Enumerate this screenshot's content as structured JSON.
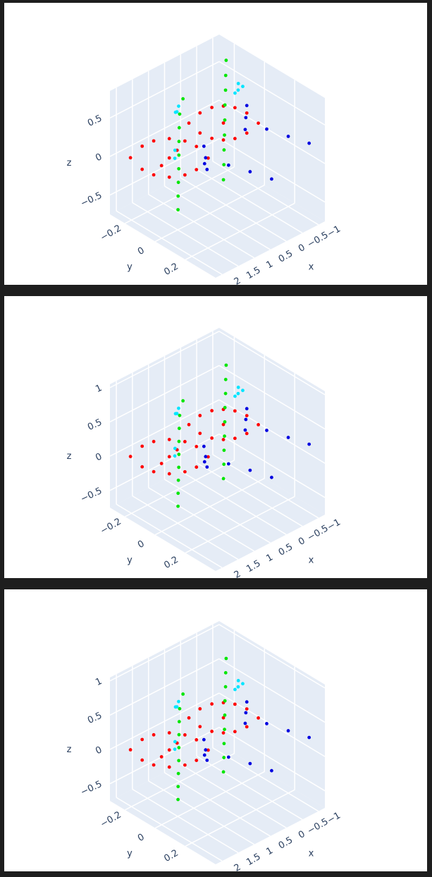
{
  "chart_data": [
    {
      "type": "scatter3d",
      "x_title": "x",
      "y_title": "y",
      "z_title": "z",
      "xlim": [
        -1.2,
        2.2
      ],
      "ylim": [
        -0.3,
        0.4
      ],
      "zlim": [
        -0.75,
        0.85
      ],
      "xticks": [
        {
          "value": -1,
          "label": "−1"
        },
        {
          "value": -0.5,
          "label": "−0.5"
        },
        0,
        0.5,
        1,
        1.5,
        2
      ],
      "yticks": [
        {
          "value": -0.2,
          "label": "−0.2"
        },
        0,
        0.2
      ],
      "zticks": [
        {
          "value": -0.5,
          "label": "−0.5"
        },
        0,
        0.5
      ],
      "series": [
        {
          "color": "#ff0000",
          "x": [
            1.655,
            1.46,
            1.46,
            1.27,
            1.27,
            1.01,
            1.01,
            1.01,
            0.75,
            0.75,
            0.56,
            0.56,
            0.365,
            0.88,
            1.14,
            0.4,
            0.21,
            0.21,
            0.01,
            0.01,
            -0.18,
            -0.18,
            -0.18,
            -0.37,
            -0.37,
            -0.57,
            -0.57,
            -0.76
          ],
          "y": [
            -0.28,
            -0.244,
            -0.244,
            -0.208,
            -0.208,
            -0.16,
            -0.16,
            -0.16,
            -0.112,
            -0.112,
            -0.076,
            -0.076,
            -0.04,
            -0.136,
            -0.184,
            -0.16,
            -0.127,
            -0.127,
            -0.091,
            -0.091,
            -0.055,
            -0.055,
            -0.055,
            -0.019,
            -0.019,
            0.017,
            0.017,
            0.053
          ],
          "z": [
            -0.11,
            0.04,
            -0.26,
            0.11,
            -0.33,
            0.14,
            -0.36,
            -0.11,
            0.11,
            -0.33,
            0.04,
            -0.26,
            -0.11,
            -0.01,
            -0.21,
            0.21,
            0.34,
            0.08,
            0.41,
            0.01,
            0.43,
            -0.01,
            0.21,
            0.41,
            0.01,
            0.34,
            0.08,
            0.21
          ]
        },
        {
          "color": "#00e600",
          "x": [
            -0.05,
            0.26,
            0.475,
            0.69,
            0.9,
            1.11,
            1.325,
            1.54,
            1.75,
            -1.135,
            -0.9,
            -0.67,
            -0.43,
            -0.2,
            0.03,
            0.27,
            0.5,
            0.735
          ],
          "y": [
            -0.295,
            -0.251,
            -0.208,
            -0.164,
            -0.12,
            -0.076,
            -0.033,
            0.011,
            0.055,
            -0.24,
            -0.193,
            -0.145,
            -0.098,
            -0.05,
            -0.003,
            0.045,
            0.093,
            0.14
          ],
          "z": [
            0.27,
            0.19,
            0.11,
            0.03,
            -0.05,
            -0.13,
            -0.21,
            -0.29,
            -0.37,
            0.6,
            0.51,
            0.425,
            0.34,
            0.25,
            0.16,
            0.075,
            -0.01,
            -0.1
          ]
        },
        {
          "color": "#00e5ff",
          "x": [
            0.25,
            0.35,
            0.3,
            0.55,
            0.65,
            -0.95,
            -0.85,
            -0.9,
            -0.8
          ],
          "y": [
            -0.26,
            -0.25,
            -0.27,
            -0.22,
            -0.2,
            -0.12,
            -0.1,
            -0.08,
            -0.11
          ],
          "z": [
            0.28,
            0.24,
            0.2,
            -0.18,
            -0.24,
            0.48,
            0.44,
            0.5,
            0.4
          ]
        },
        {
          "color": "#0000e0",
          "x": [
            0.45,
            0.42,
            0.4,
            0.43,
            0.2,
            0.0,
            -0.2,
            -0.65,
            -0.62,
            -0.6,
            -0.8,
            -1.0,
            -1.18
          ],
          "y": [
            -0.05,
            -0.045,
            -0.04,
            -0.05,
            0.06,
            0.16,
            0.26,
            0,
            0,
            0,
            0.1,
            0.2,
            0.3
          ],
          "z": [
            0.05,
            -0.1,
            -0.25,
            -0.18,
            -0.12,
            -0.13,
            -0.15,
            0.4,
            0.25,
            0.1,
            0.18,
            0.16,
            0.15
          ]
        }
      ]
    },
    {
      "type": "scatter3d",
      "x_title": "x",
      "y_title": "y",
      "z_title": "z",
      "xlim": [
        -1.2,
        2.2
      ],
      "ylim": [
        -0.3,
        0.4
      ],
      "zlim": [
        -0.75,
        1.05
      ],
      "xticks": [
        {
          "value": -1,
          "label": "−1"
        },
        {
          "value": -0.5,
          "label": "−0.5"
        },
        0,
        0.5,
        1,
        1.5,
        2
      ],
      "yticks": [
        {
          "value": -0.2,
          "label": "−0.2"
        },
        0,
        0.2
      ],
      "zticks": [
        {
          "value": -0.5,
          "label": "−0.5"
        },
        0,
        0.5,
        1
      ],
      "series": [
        {
          "color": "#ff0000",
          "x": [
            1.655,
            1.46,
            1.46,
            1.27,
            1.27,
            1.01,
            1.01,
            1.01,
            0.75,
            0.75,
            0.56,
            0.56,
            0.365,
            0.88,
            1.14,
            0.4,
            0.21,
            0.21,
            0.01,
            0.01,
            -0.18,
            -0.18,
            -0.18,
            -0.37,
            -0.37,
            -0.57,
            -0.57,
            -0.76
          ],
          "y": [
            -0.28,
            -0.244,
            -0.244,
            -0.208,
            -0.208,
            -0.16,
            -0.16,
            -0.16,
            -0.112,
            -0.112,
            -0.076,
            -0.076,
            -0.04,
            -0.136,
            -0.184,
            -0.16,
            -0.127,
            -0.127,
            -0.091,
            -0.091,
            -0.055,
            -0.055,
            -0.055,
            -0.019,
            -0.019,
            0.017,
            0.017,
            0.053
          ],
          "z": [
            -0.11,
            0.04,
            -0.26,
            0.11,
            -0.33,
            0.14,
            -0.36,
            -0.11,
            0.11,
            -0.33,
            0.04,
            -0.26,
            -0.11,
            -0.01,
            -0.21,
            0.21,
            0.34,
            0.08,
            0.41,
            0.01,
            0.43,
            -0.01,
            0.21,
            0.41,
            0.01,
            0.34,
            0.08,
            0.21
          ]
        },
        {
          "color": "#00e600",
          "x": [
            -0.05,
            0.26,
            0.475,
            0.69,
            0.9,
            1.11,
            1.325,
            1.54,
            1.75,
            -1.135,
            -0.9,
            -0.67,
            -0.43,
            -0.2,
            0.03,
            0.27,
            0.5,
            0.735
          ],
          "y": [
            -0.295,
            -0.251,
            -0.208,
            -0.164,
            -0.12,
            -0.076,
            -0.033,
            0.011,
            0.055,
            -0.24,
            -0.193,
            -0.145,
            -0.098,
            -0.05,
            -0.003,
            0.045,
            0.093,
            0.14
          ],
          "z": [
            0.27,
            0.19,
            0.11,
            0.03,
            -0.05,
            -0.13,
            -0.21,
            -0.29,
            -0.37,
            0.6,
            0.51,
            0.425,
            0.34,
            0.25,
            0.16,
            0.075,
            -0.01,
            -0.1
          ]
        },
        {
          "color": "#00e5ff",
          "x": [
            0.25,
            0.35,
            0.3,
            0.55,
            0.65,
            -0.95,
            -0.85,
            -0.9,
            -0.8
          ],
          "y": [
            -0.26,
            -0.25,
            -0.27,
            -0.22,
            -0.2,
            -0.12,
            -0.1,
            -0.08,
            -0.11
          ],
          "z": [
            0.28,
            0.24,
            0.2,
            -0.18,
            -0.24,
            0.48,
            0.44,
            0.5,
            0.4
          ]
        },
        {
          "color": "#0000e0",
          "x": [
            0.45,
            0.42,
            0.4,
            0.43,
            0.2,
            0.0,
            -0.2,
            -0.65,
            -0.62,
            -0.6,
            -0.8,
            -1.0,
            -1.18
          ],
          "y": [
            -0.05,
            -0.045,
            -0.04,
            -0.05,
            0.06,
            0.16,
            0.26,
            0,
            0,
            0,
            0.1,
            0.2,
            0.3
          ],
          "z": [
            0.05,
            -0.1,
            -0.25,
            -0.18,
            -0.12,
            -0.13,
            -0.15,
            0.4,
            0.25,
            0.1,
            0.18,
            0.16,
            0.15
          ]
        }
      ]
    },
    {
      "type": "scatter3d",
      "x_title": "x",
      "y_title": "y",
      "z_title": "z",
      "xlim": [
        -1.2,
        2.2
      ],
      "ylim": [
        -0.3,
        0.4
      ],
      "zlim": [
        -0.75,
        1.05
      ],
      "xticks": [
        {
          "value": -1,
          "label": "−1"
        },
        {
          "value": -0.5,
          "label": "−0.5"
        },
        0,
        0.5,
        1,
        1.5,
        2
      ],
      "yticks": [
        {
          "value": -0.2,
          "label": "−0.2"
        },
        0,
        0.2
      ],
      "zticks": [
        {
          "value": -0.5,
          "label": "−0.5"
        },
        0,
        0.5,
        1
      ],
      "series": [
        {
          "color": "#ff0000",
          "x": [
            1.655,
            1.46,
            1.46,
            1.27,
            1.27,
            1.01,
            1.01,
            1.01,
            0.75,
            0.75,
            0.56,
            0.56,
            0.365,
            0.88,
            1.14,
            0.4,
            0.21,
            0.21,
            0.01,
            0.01,
            -0.18,
            -0.18,
            -0.18,
            -0.37,
            -0.37,
            -0.57,
            -0.57,
            -0.76
          ],
          "y": [
            -0.28,
            -0.244,
            -0.244,
            -0.208,
            -0.208,
            -0.16,
            -0.16,
            -0.16,
            -0.112,
            -0.112,
            -0.076,
            -0.076,
            -0.04,
            -0.136,
            -0.184,
            -0.16,
            -0.127,
            -0.127,
            -0.091,
            -0.091,
            -0.055,
            -0.055,
            -0.055,
            -0.019,
            -0.019,
            0.017,
            0.017,
            0.053
          ],
          "z": [
            -0.11,
            0.04,
            -0.26,
            0.11,
            -0.33,
            0.14,
            -0.36,
            -0.11,
            0.11,
            -0.33,
            0.04,
            -0.26,
            -0.11,
            -0.01,
            -0.21,
            0.21,
            0.34,
            0.08,
            0.41,
            0.01,
            0.43,
            -0.01,
            0.21,
            0.41,
            0.01,
            0.34,
            0.08,
            0.21
          ]
        },
        {
          "color": "#00e600",
          "x": [
            -0.05,
            0.26,
            0.475,
            0.69,
            0.9,
            1.11,
            1.325,
            1.54,
            1.75,
            -1.135,
            -0.9,
            -0.67,
            -0.43,
            -0.2,
            0.03,
            0.27,
            0.5,
            0.735
          ],
          "y": [
            -0.295,
            -0.251,
            -0.208,
            -0.164,
            -0.12,
            -0.076,
            -0.033,
            0.011,
            0.055,
            -0.24,
            -0.193,
            -0.145,
            -0.098,
            -0.05,
            -0.003,
            0.045,
            0.093,
            0.14
          ],
          "z": [
            0.27,
            0.19,
            0.11,
            0.03,
            -0.05,
            -0.13,
            -0.21,
            -0.29,
            -0.37,
            0.6,
            0.51,
            0.425,
            0.34,
            0.25,
            0.16,
            0.075,
            -0.01,
            -0.1
          ]
        },
        {
          "color": "#00e5ff",
          "x": [
            0.25,
            0.35,
            0.3,
            0.55,
            0.65,
            -0.95,
            -0.85,
            -0.9,
            -0.8
          ],
          "y": [
            -0.26,
            -0.25,
            -0.27,
            -0.22,
            -0.2,
            -0.12,
            -0.1,
            -0.08,
            -0.11
          ],
          "z": [
            0.28,
            0.24,
            0.2,
            -0.18,
            -0.24,
            0.48,
            0.44,
            0.5,
            0.4
          ]
        },
        {
          "color": "#0000e0",
          "x": [
            0.45,
            0.42,
            0.4,
            0.43,
            0.2,
            0.0,
            -0.2,
            -0.65,
            -0.62,
            -0.6,
            -0.8,
            -1.0,
            -1.18
          ],
          "y": [
            -0.05,
            -0.045,
            -0.04,
            -0.05,
            0.06,
            0.16,
            0.26,
            0,
            0,
            0,
            0.1,
            0.2,
            0.3
          ],
          "z": [
            0.05,
            -0.1,
            -0.25,
            -0.18,
            -0.12,
            -0.13,
            -0.15,
            0.4,
            0.25,
            0.1,
            0.18,
            0.16,
            0.15
          ]
        }
      ]
    }
  ]
}
